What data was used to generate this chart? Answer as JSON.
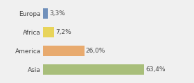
{
  "categories": [
    "Europa",
    "Africa",
    "America",
    "Asia"
  ],
  "values": [
    63.4,
    26.0,
    7.2,
    3.3
  ],
  "labels": [
    "63,4%",
    "26,0%",
    "7,2%",
    "3,3%"
  ],
  "bar_colors": [
    "#a8be7a",
    "#e8aa6e",
    "#e8d45a",
    "#7090bb"
  ],
  "background_color": "#f0f0f0",
  "xlim": [
    0,
    80
  ],
  "bar_height": 0.55,
  "label_fontsize": 6.5,
  "tick_fontsize": 6.5
}
